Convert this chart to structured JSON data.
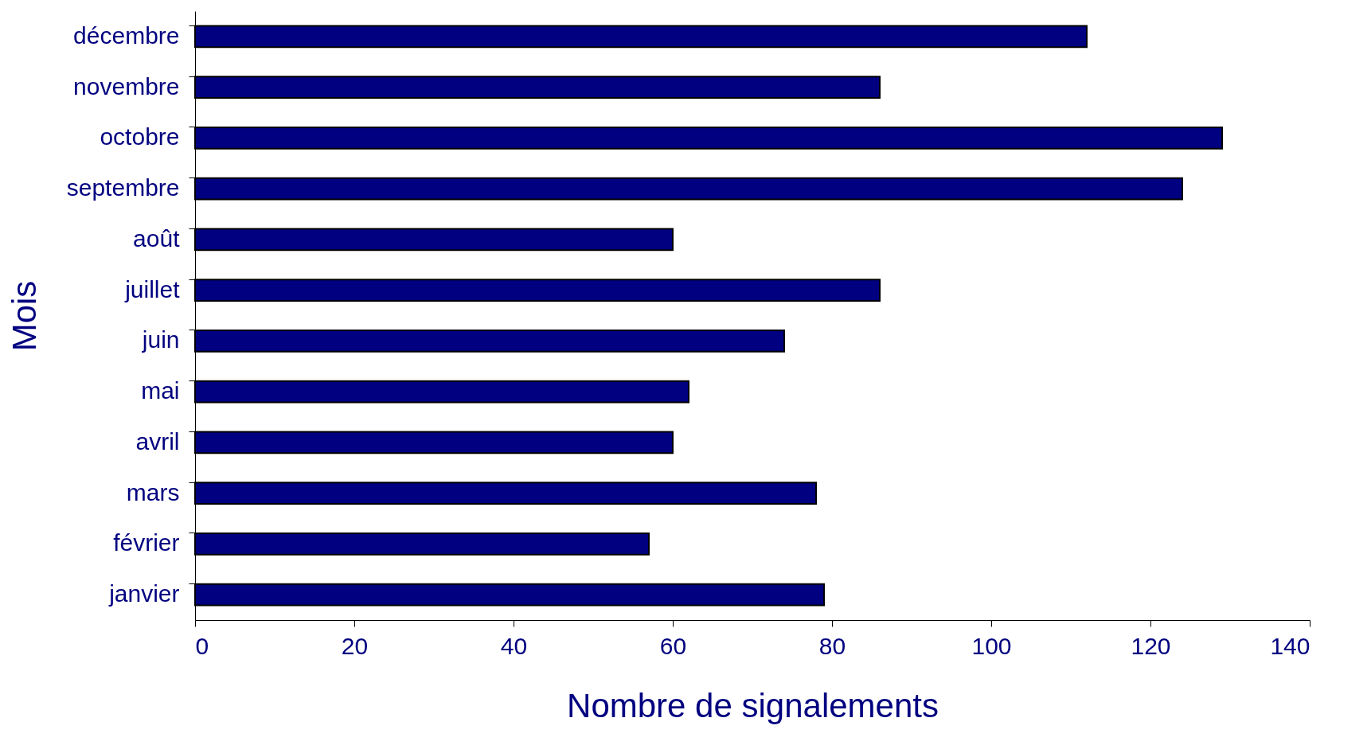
{
  "chart_data": {
    "type": "bar",
    "orientation": "horizontal",
    "xlabel": "Nombre de signalements",
    "ylabel": "Mois",
    "categories": [
      "décembre",
      "novembre",
      "octobre",
      "septembre",
      "août",
      "juillet",
      "juin",
      "mai",
      "avril",
      "mars",
      "février",
      "janvier"
    ],
    "values": [
      112,
      86,
      129,
      124,
      60,
      86,
      74,
      62,
      60,
      78,
      57,
      79
    ],
    "color": "#000080",
    "xlim": [
      0,
      140
    ],
    "xticks": [
      0,
      20,
      40,
      60,
      80,
      100,
      120,
      140
    ],
    "grid": false
  }
}
